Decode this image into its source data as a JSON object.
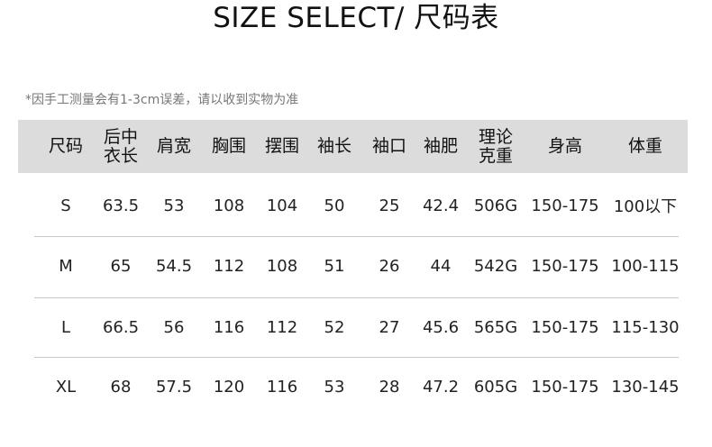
{
  "title": "SIZE SELECT/ 尺码表",
  "note": "*因手工测量会有1-3cm误差，请以收到实物为准",
  "columns": [
    "尺码",
    "后中\n衣长",
    "肩宽",
    "胸围",
    "摆围",
    "袖长",
    "袖口",
    "袖肥",
    "理论\n克重",
    "身高",
    "体重"
  ],
  "rows": [
    [
      "S",
      "63.5",
      "53",
      "108",
      "104",
      "50",
      "25",
      "42.4",
      "506G",
      "150-175",
      "100以下"
    ],
    [
      "M",
      "65",
      "54.5",
      "112",
      "108",
      "51",
      "26",
      "44",
      "542G",
      "150-175",
      "100-115"
    ],
    [
      "L",
      "66.5",
      "56",
      "116",
      "112",
      "52",
      "27",
      "45.6",
      "565G",
      "150-175",
      "115-130"
    ],
    [
      "XL",
      "68",
      "57.5",
      "120",
      "116",
      "53",
      "28",
      "47.2",
      "605G",
      "150-175",
      "130-145"
    ]
  ]
}
